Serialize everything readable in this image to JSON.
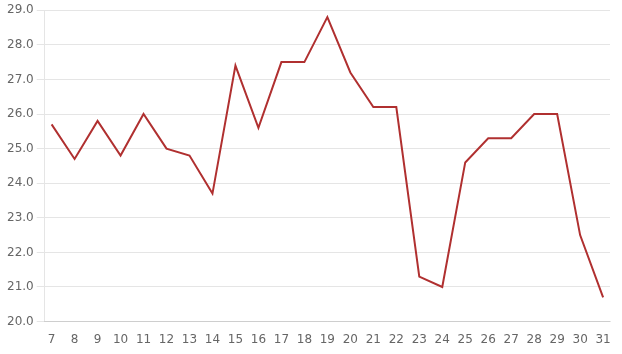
{
  "chart_data": {
    "type": "line",
    "x": [
      7,
      8,
      9,
      10,
      11,
      12,
      13,
      14,
      15,
      16,
      17,
      18,
      19,
      20,
      21,
      22,
      23,
      24,
      25,
      26,
      27,
      28,
      29,
      30,
      31
    ],
    "values": [
      25.7,
      24.7,
      25.8,
      24.8,
      26.0,
      25.0,
      24.8,
      23.7,
      27.4,
      25.6,
      27.5,
      27.5,
      28.8,
      27.2,
      26.2,
      26.2,
      21.3,
      21.0,
      24.6,
      25.3,
      25.3,
      26.0,
      26.0,
      22.5,
      20.7
    ],
    "color": "#b03030",
    "xlim": [
      6.7,
      31.3
    ],
    "xticks": [
      7,
      8,
      9,
      10,
      11,
      12,
      13,
      14,
      15,
      16,
      17,
      18,
      19,
      20,
      21,
      22,
      23,
      24,
      25,
      26,
      27,
      28,
      29,
      30,
      31
    ],
    "ylim": [
      20.0,
      29.0
    ],
    "yticks": [
      {
        "value": 20,
        "label": "20.0"
      },
      {
        "value": 21,
        "label": "21.0"
      },
      {
        "value": 22,
        "label": "22.0"
      },
      {
        "value": 23,
        "label": "23.0"
      },
      {
        "value": 24,
        "label": "24.0"
      },
      {
        "value": 25,
        "label": "25.0"
      },
      {
        "value": 26,
        "label": "26.0"
      },
      {
        "value": 27,
        "label": "27.0"
      },
      {
        "value": 28,
        "label": "28.0"
      },
      {
        "value": 29,
        "label": "29.0"
      }
    ],
    "grid": "y"
  }
}
